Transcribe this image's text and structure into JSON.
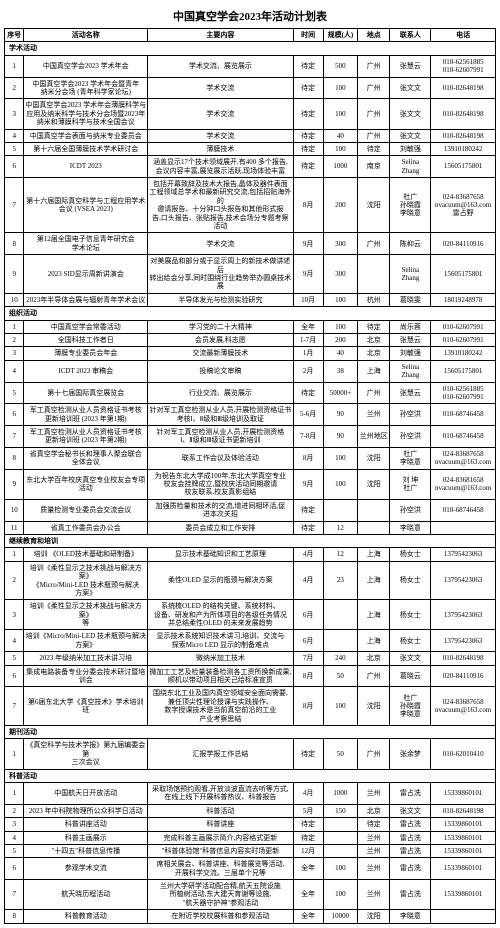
{
  "title": "中国真空学会2023年活动计划表",
  "headers": {
    "seq": "序号",
    "name": "活动名称",
    "content": "主要内容",
    "time": "时间",
    "scale": "规模(人)",
    "place": "地点",
    "contact": "联系人",
    "phone": "电话"
  },
  "sections": [
    {
      "label": "学术活动",
      "rows": [
        {
          "seq": "1",
          "name": "中国真空学会2023 学术年会",
          "content": "学术交流、展览展示",
          "time": "待定",
          "scale": "500",
          "place": "广州",
          "contact": "张慧云",
          "phone": "010-62561885\n010-62607991"
        },
        {
          "seq": "2",
          "name": "中国真空学会2023 学术年会暨青年\n纳米分会场 (青年科学家论坛)",
          "content": "学术交流",
          "time": "待定",
          "scale": "100",
          "place": "广州",
          "contact": "张文文",
          "phone": "010-82648198"
        },
        {
          "seq": "3",
          "name": "中国真空学会2023 学术年会薄膜科学与\n应用及纳米科学与技术分会场暨2023年\n纳米和薄膜科学与技术全国会议",
          "content": "学术交流",
          "time": "待定",
          "scale": "100",
          "place": "广州",
          "contact": "张文文",
          "phone": "010-82648198"
        },
        {
          "seq": "4",
          "name": "中国真空学会表面与纳米专业委员会",
          "content": "学术交流",
          "time": "待定",
          "scale": "40",
          "place": "广州",
          "contact": "张文文",
          "phone": "010-82648198"
        },
        {
          "seq": "5",
          "name": "第十六届全国薄膜技术学术研讨会",
          "content": "薄膜技术",
          "time": "待定",
          "scale": "100",
          "place": "待定",
          "contact": "刘敏强",
          "phone": "13910180242"
        },
        {
          "seq": "6",
          "name": "ICDT 2023",
          "content": "涵盖显示17个技术领域展开,有400 多个报告,\n会议内容丰富,展览展示活跃,现场体验丰富",
          "time": "待定",
          "scale": "1000",
          "place": "南京",
          "contact": "Selina\nZhang",
          "phone": "15605175801"
        },
        {
          "seq": "7",
          "name": "第十六届国际真空科学与工程应用学术\n会议 (VSEA 2023)",
          "content": "包括开幕致辞及技术大报告,晶体及器件表面\n工程领域总学术和最新研究交流,包括招贴海外的\n邀请报告、十分钟口头报告和其他形式报\n告,口头报告、张贴报告,技术会场分专题考察活动",
          "time": "8月",
          "scale": "200",
          "place": "沈阳",
          "contact": "杜广\n孙晓霞\n李晓意",
          "phone": "024-83687658\nnvacuum@163.com\n雷占野"
        },
        {
          "seq": "8",
          "name": "第12届全国电子信息青年研究会\n学术论坛",
          "content": "学术交流",
          "time": "9月",
          "scale": "300",
          "place": "广州",
          "contact": "陈枊云",
          "phone": "020-84110916"
        },
        {
          "seq": "9",
          "name": "2023 SID显示周新讲演会",
          "content": "对美展品和部分或于显示周上的新技术做讲述后\n转出给会分享,同时围绕行业趋势举办圆桌技术展",
          "time": "9月",
          "scale": "300",
          "place": "",
          "contact": "Selina\nZhang",
          "phone": "15605175801"
        },
        {
          "seq": "10",
          "name": "2023年半导体会展与辐射青年学术会议",
          "content": "半导体发光与检测实验研究",
          "time": "10月",
          "scale": "100",
          "place": "杭州",
          "contact": "葛晓雯",
          "phone": "18019248978"
        }
      ]
    },
    {
      "label": "组织活动",
      "rows": [
        {
          "seq": "1",
          "name": "中国真空学会常委活动",
          "content": "学习党的二十大精神",
          "time": "全年",
          "scale": "100",
          "place": "待定",
          "contact": "尚乐蓉",
          "phone": "010-62607991"
        },
        {
          "seq": "2",
          "name": "全国科技工作者日",
          "content": "会员发展,科志愿",
          "time": "1-7月",
          "scale": "200",
          "place": "北京",
          "contact": "张慧云",
          "phone": "010-62607991"
        },
        {
          "seq": "3",
          "name": "薄膜专业委员会年会",
          "content": "交流最新薄膜技术",
          "time": "1月",
          "scale": "40",
          "place": "北京",
          "contact": "刘敏强",
          "phone": "13910180242"
        },
        {
          "seq": "4",
          "name": "ICDT 2023 审稿会",
          "content": "投稿论文审稿",
          "time": "2月",
          "scale": "38",
          "place": "上海",
          "contact": "Selina\nZhang",
          "phone": "15605175801"
        },
        {
          "seq": "5",
          "name": "第十七届国际真空展览会",
          "content": "行业交流、展览展示",
          "time": "待定",
          "scale": "50000+",
          "place": "广州",
          "contact": "张慧云",
          "phone": "010-62561885\n010-62607991"
        },
        {
          "seq": "6",
          "name": "军工真空检测从业人员资格证书考核\n更新培训班 (2023 年第1期)",
          "content": "针对军工真空检测从业人员,开展检测资格证书\n考核Ⅰ、Ⅱ级和Ⅲ级培训及取证",
          "time": "5-6月",
          "scale": "90",
          "place": "兰州",
          "contact": "孙空洪",
          "phone": "010-68746458"
        },
        {
          "seq": "7",
          "name": "军工真空检测从业人员资格证书考核\n更新培训班 (2023 年第2期)",
          "content": "针对军工真空检测从业人员,开展检测资格\nⅠ、Ⅱ级和Ⅲ级证书更新培训",
          "time": "7-8月",
          "scale": "90",
          "place": "兰州地区",
          "contact": "孙空洪",
          "phone": "010-68746458"
        },
        {
          "seq": "8",
          "name": "省真空学会秘书长和理事人聚会联合\n全体会议",
          "content": "联系工作会议及体验活动",
          "time": "8月",
          "scale": "100",
          "place": "沈阳",
          "contact": "杜广\n李晓意",
          "phone": "024-83687658\nnvacuum@163.com"
        },
        {
          "seq": "9",
          "name": "东北大学百年校庆真空专业校友会专项\n活动",
          "content": "为祝告东北大学成100年,东北大学真空专业\n校友会挂牌成立,暨校庆活动同期邀请\n校友联系,校友真影组结",
          "time": "9月",
          "scale": "100",
          "place": "沈阳",
          "contact": "刘 坤\n杜广",
          "phone": "024-83681658\nnvacuum@163.com"
        },
        {
          "seq": "10",
          "name": "质量检测专业委员会交流会议",
          "content": "加强质检量和技术的交流,增进同相环活,促\n进本次关招",
          "time": "待定",
          "scale": "",
          "place": "",
          "contact": "孙空洪",
          "phone": "010-68746458"
        },
        {
          "seq": "11",
          "name": "省真工作委员会办公会",
          "content": "委员会成立和工作安排",
          "time": "待定",
          "scale": "12",
          "place": "",
          "contact": "李晓意",
          "phone": ""
        }
      ]
    },
    {
      "label": "继续教育和培训",
      "rows": [
        {
          "seq": "1",
          "name": "培训 《OLED技术基础和研制备》",
          "content": "显示技术基础知识和工艺原理",
          "time": "4月",
          "scale": "12",
          "place": "上海",
          "contact": "杨女士",
          "phone": "13795423063"
        },
        {
          "seq": "2",
          "name": "培训《柔性显示之技术挑战与解决方案》\n《Micro/Mini-LED 技术瓶颈与解决\n方案》",
          "content": "柔性OLED 显示的瓶颈与解决方案",
          "time": "4月",
          "scale": "23",
          "place": "上海",
          "contact": "杨女士",
          "phone": "13795423063"
        },
        {
          "seq": "3",
          "name": "培训《柔性显示之技术挑战与解决方案》\n等",
          "content": "系统梳OLED 的结构关键、系统材料、\n设备、研发和产为所体项目的各级任务情况\n并总结柔性OLED 的未来发展趋势",
          "time": "6月",
          "scale": "",
          "place": "上海",
          "contact": "杨女士",
          "phone": "13795423063"
        },
        {
          "seq": "4",
          "name": "培训《Micro/Mini-LED 技术瓶颈与解决\n方案》",
          "content": "显示技术系统知识技术讲习,培训、交流与\n探索Micro LED 显示的制备难点",
          "time": "6月",
          "scale": "",
          "place": "上海",
          "contact": "杨女士",
          "phone": "13795423063"
        },
        {
          "seq": "5",
          "name": "2023 年级纳米加工技术讲习培",
          "content": "微纳米加工技术",
          "time": "7月",
          "scale": "240",
          "place": "北京",
          "contact": "张文文",
          "phone": "010-82648198"
        },
        {
          "seq": "6",
          "name": "集成电路装备专业分委会技术研讨暨培\n训会",
          "content": "微加工工艺及检量装备检测各工资所换新成果,\n顺机以带动项目相关己给标准宣贯",
          "time": "8月",
          "scale": "50",
          "place": "广州",
          "contact": "葛晓云",
          "phone": "020-84110916"
        },
        {
          "seq": "7",
          "name": "第6届东北大学《真空技术》学术培训班",
          "content": "围绕东北工业及国内真空领域安全面向需要,\n兼任顶尖性理论授课与实践操作、\n数字授课技术是当前真空前沿的工业\n产业考察思结",
          "time": "8月",
          "scale": "100",
          "place": "沈阳",
          "contact": "杜广\n孙晓霞\n李晓意",
          "phone": "024-83687658\nnvacuum@163.com"
        }
      ]
    },
    {
      "label": "期刊活动",
      "rows": [
        {
          "seq": "1",
          "name": "《真空科学与技术学报》第九届编委会第\n三次会议",
          "content": "汇报学报工作总结",
          "time": "待定",
          "scale": "50",
          "place": "广州",
          "contact": "张余梦",
          "phone": "010-62010410"
        }
      ]
    },
    {
      "label": "科普活动",
      "rows": [
        {
          "seq": "1",
          "name": "中国航天日开放活动",
          "content": "采取场馆预约观看,开放淡波直流去听等方式,\n在线上线下开展科普热议、科普报告",
          "time": "4月",
          "scale": "1000",
          "place": "兰州",
          "contact": "雷占洗",
          "phone": "15339860101"
        },
        {
          "seq": "2",
          "name": "2023 年中科院物理所公众科学日活动",
          "content": "科普活动",
          "time": "5月",
          "scale": "150",
          "place": "北京",
          "contact": "张文文",
          "phone": "010-82648198"
        },
        {
          "seq": "3",
          "name": "科普讲座活动",
          "content": "科普讲座",
          "time": "待定",
          "scale": "",
          "place": "待定",
          "contact": "雷占洗",
          "phone": "15339860101"
        },
        {
          "seq": "4",
          "name": "科普主画展示",
          "content": "完成科普主画展示简介,内容格式更新",
          "time": "待定",
          "scale": "",
          "place": "兰州",
          "contact": "雷占洗",
          "phone": "15339860101"
        },
        {
          "seq": "5",
          "name": "\"十四五\"科普信息传播",
          "content": "\"科普体验馆\"科普信息内容实时场更新",
          "time": "12月",
          "scale": "",
          "place": "兰州",
          "contact": "雷占洗",
          "phone": "15339860101"
        },
        {
          "seq": "6",
          "name": "参观学术交流",
          "content": "席相关展会、科普讲座、科普展览等活动,\n开展科学交流。三届单个兄等",
          "time": "全年",
          "scale": "100",
          "place": "兰州",
          "contact": "雷占洗",
          "phone": "15339860101"
        },
        {
          "seq": "7",
          "name": "航天晓历程活动",
          "content": "兰州大学研学活动配合精,航天五院设施\n所植树活动,东大建天育谢等设施,\n\"航天器守护神\"参观活动",
          "time": "全年",
          "scale": "100",
          "place": "兰州",
          "contact": "雷占洗",
          "phone": "15339860101"
        },
        {
          "seq": "8",
          "name": "科普教育活动",
          "content": "在附近学校校展科普和参观活动",
          "time": "全年",
          "scale": "10000",
          "place": "沈阳",
          "contact": "李晓意",
          "phone": ""
        }
      ]
    }
  ]
}
